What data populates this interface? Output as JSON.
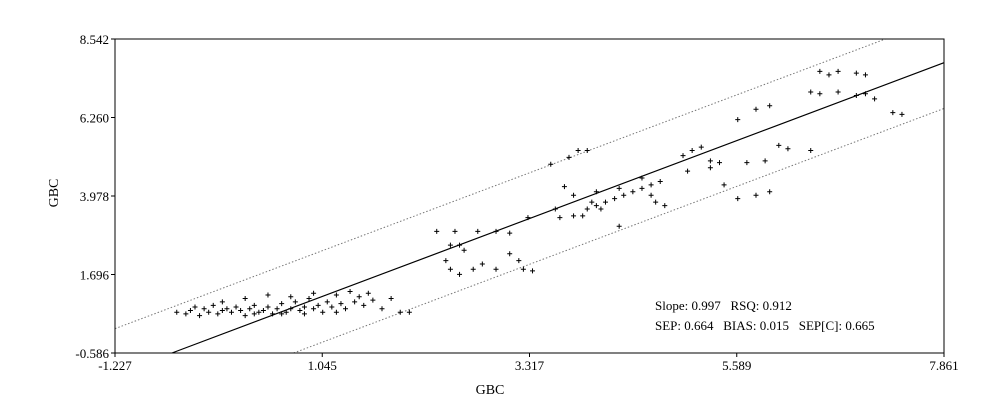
{
  "chart_data": {
    "type": "scatter",
    "xlabel": "GBC",
    "ylabel": "GBC",
    "xlim": [
      -1.227,
      7.861
    ],
    "ylim": [
      -0.586,
      8.542
    ],
    "x_ticks": [
      "-1.227",
      "1.045",
      "3.317",
      "5.589",
      "7.861"
    ],
    "y_ticks": [
      "8.542",
      "6.260",
      "3.978",
      "1.696",
      "-0.586"
    ],
    "grid": false,
    "regression_line": {
      "slope": 0.997,
      "intercept": 0.015
    },
    "prediction_band": {
      "offset": 1.33
    },
    "stats": {
      "line1": "Slope: 0.997   RSQ: 0.912",
      "line2": "SEP: 0.664   BIAS: 0.015   SEP[C]: 0.665"
    },
    "series": [
      {
        "marker": "+",
        "points": [
          [
            -0.55,
            0.6
          ],
          [
            -0.45,
            0.55
          ],
          [
            -0.4,
            0.65
          ],
          [
            -0.35,
            0.75
          ],
          [
            -0.3,
            0.5
          ],
          [
            -0.25,
            0.7
          ],
          [
            -0.2,
            0.6
          ],
          [
            -0.15,
            0.8
          ],
          [
            -0.1,
            0.55
          ],
          [
            -0.05,
            0.65
          ],
          [
            0.0,
            0.7
          ],
          [
            0.05,
            0.6
          ],
          [
            0.1,
            0.75
          ],
          [
            0.15,
            0.65
          ],
          [
            0.2,
            0.5
          ],
          [
            0.25,
            0.7
          ],
          [
            0.3,
            0.8
          ],
          [
            0.35,
            0.6
          ],
          [
            0.4,
            0.65
          ],
          [
            0.45,
            0.75
          ],
          [
            0.5,
            0.55
          ],
          [
            0.55,
            0.7
          ],
          [
            0.6,
            0.85
          ],
          [
            0.65,
            0.6
          ],
          [
            0.7,
            0.7
          ],
          [
            0.75,
            0.9
          ],
          [
            0.8,
            0.65
          ],
          [
            0.85,
            0.75
          ],
          [
            0.9,
            1.0
          ],
          [
            0.95,
            0.7
          ],
          [
            1.0,
            0.8
          ],
          [
            1.05,
            0.6
          ],
          [
            1.1,
            0.9
          ],
          [
            1.15,
            0.75
          ],
          [
            1.2,
            1.1
          ],
          [
            1.25,
            0.85
          ],
          [
            1.3,
            0.7
          ],
          [
            1.35,
            1.2
          ],
          [
            1.4,
            0.9
          ],
          [
            1.45,
            1.05
          ],
          [
            1.5,
            0.8
          ],
          [
            1.55,
            1.15
          ],
          [
            1.6,
            0.95
          ],
          [
            1.7,
            0.7
          ],
          [
            1.8,
            1.0
          ],
          [
            -0.05,
            0.9
          ],
          [
            0.2,
            1.0
          ],
          [
            0.45,
            1.1
          ],
          [
            0.7,
            1.05
          ],
          [
            0.95,
            1.15
          ],
          [
            1.2,
            0.6
          ],
          [
            1.9,
            0.6
          ],
          [
            2.0,
            0.6
          ],
          [
            0.3,
            0.55
          ],
          [
            0.6,
            0.55
          ],
          [
            0.85,
            0.55
          ],
          [
            2.3,
            2.95
          ],
          [
            2.5,
            2.95
          ],
          [
            2.75,
            2.95
          ],
          [
            2.95,
            2.95
          ],
          [
            3.1,
            2.9
          ],
          [
            3.3,
            3.35
          ],
          [
            2.45,
            2.55
          ],
          [
            2.55,
            2.55
          ],
          [
            2.6,
            2.4
          ],
          [
            2.4,
            2.1
          ],
          [
            2.45,
            1.85
          ],
          [
            2.55,
            1.7
          ],
          [
            2.7,
            1.85
          ],
          [
            2.8,
            2.0
          ],
          [
            2.95,
            1.85
          ],
          [
            3.1,
            2.3
          ],
          [
            3.2,
            2.1
          ],
          [
            3.25,
            1.85
          ],
          [
            3.35,
            1.8
          ],
          [
            3.65,
            3.35
          ],
          [
            3.8,
            3.4
          ],
          [
            3.95,
            3.6
          ],
          [
            4.05,
            3.7
          ],
          [
            4.15,
            3.8
          ],
          [
            4.25,
            3.9
          ],
          [
            4.35,
            4.0
          ],
          [
            4.45,
            4.1
          ],
          [
            4.55,
            4.2
          ],
          [
            4.65,
            4.3
          ],
          [
            4.75,
            4.4
          ],
          [
            3.55,
            4.9
          ],
          [
            3.75,
            5.1
          ],
          [
            3.85,
            5.3
          ],
          [
            3.95,
            5.3
          ],
          [
            3.7,
            4.25
          ],
          [
            3.8,
            4.0
          ],
          [
            4.05,
            4.1
          ],
          [
            4.3,
            4.2
          ],
          [
            4.55,
            4.5
          ],
          [
            4.65,
            4.0
          ],
          [
            4.7,
            3.8
          ],
          [
            4.8,
            3.7
          ],
          [
            3.9,
            3.4
          ],
          [
            4.1,
            3.6
          ],
          [
            4.3,
            3.1
          ],
          [
            5.0,
            5.15
          ],
          [
            5.1,
            5.3
          ],
          [
            5.2,
            5.4
          ],
          [
            5.3,
            5.0
          ],
          [
            5.05,
            4.7
          ],
          [
            5.3,
            4.8
          ],
          [
            5.4,
            4.95
          ],
          [
            5.45,
            4.3
          ],
          [
            5.6,
            3.9
          ],
          [
            5.8,
            4.0
          ],
          [
            5.95,
            4.1
          ],
          [
            5.7,
            4.95
          ],
          [
            5.9,
            5.0
          ],
          [
            5.6,
            6.2
          ],
          [
            5.8,
            6.5
          ],
          [
            5.95,
            6.6
          ],
          [
            6.05,
            5.45
          ],
          [
            6.15,
            5.35
          ],
          [
            6.4,
            5.3
          ],
          [
            6.5,
            7.6
          ],
          [
            6.6,
            7.5
          ],
          [
            6.7,
            7.6
          ],
          [
            6.9,
            7.55
          ],
          [
            7.0,
            7.5
          ],
          [
            6.4,
            7.0
          ],
          [
            6.5,
            6.95
          ],
          [
            6.7,
            7.0
          ],
          [
            6.9,
            6.9
          ],
          [
            7.0,
            6.95
          ],
          [
            7.1,
            6.8
          ],
          [
            7.3,
            6.4
          ],
          [
            7.4,
            6.35
          ],
          [
            3.6,
            3.6
          ],
          [
            4.0,
            3.8
          ]
        ]
      }
    ]
  }
}
